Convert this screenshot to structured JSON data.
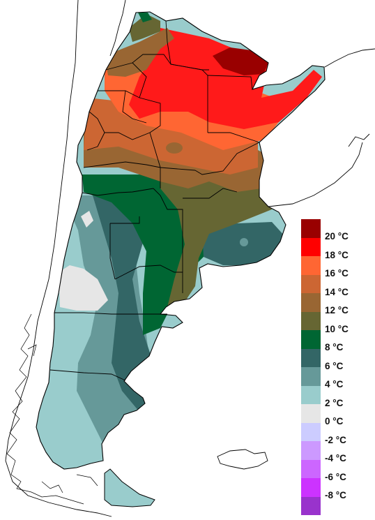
{
  "map": {
    "zone_colors": {
      "above_20": "#990000",
      "18_20": "#ff1a1a",
      "16_18": "#ff6633",
      "14_16": "#cc6633",
      "12_14": "#996633",
      "10_12": "#666633",
      "8_10": "#006633",
      "6_8": "#336666",
      "4_6": "#669999",
      "2_4": "#99cccc",
      "0_2": "#e6e6e6"
    },
    "border_color": "#000000",
    "coast_color": "#000000"
  },
  "legend": {
    "items": [
      {
        "label": "20 °C",
        "color": "#990000"
      },
      {
        "label": "18 °C",
        "color": "#ff0000"
      },
      {
        "label": "16 °C",
        "color": "#ff6633"
      },
      {
        "label": "14 °C",
        "color": "#cc6633"
      },
      {
        "label": "12 °C",
        "color": "#996633"
      },
      {
        "label": "10 °C",
        "color": "#666633"
      },
      {
        "label": "8 °C",
        "color": "#006633"
      },
      {
        "label": "6 °C",
        "color": "#336666"
      },
      {
        "label": "4 °C",
        "color": "#669999"
      },
      {
        "label": "2 °C",
        "color": "#99cccc"
      },
      {
        "label": "0 °C",
        "color": "#e6e6e6"
      },
      {
        "label": "-2 °C",
        "color": "#ccccff"
      },
      {
        "label": "-4 °C",
        "color": "#cc99ff"
      },
      {
        "label": "-6 °C",
        "color": "#cc66ff"
      },
      {
        "label": "-8 °C",
        "color": "#cc33ff"
      },
      {
        "label": "",
        "color": "#9933cc"
      }
    ]
  }
}
